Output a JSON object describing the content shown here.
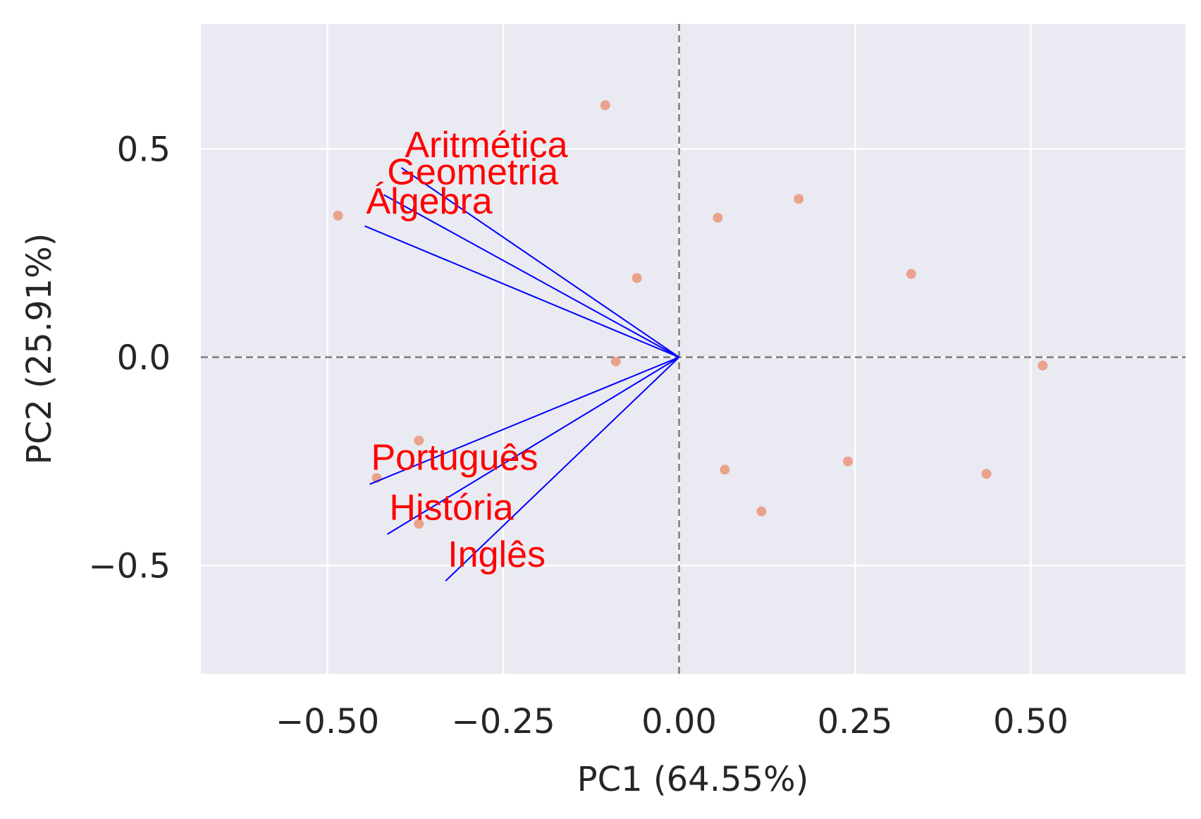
{
  "chart_data": {
    "type": "scatter",
    "title": "",
    "xlabel": "PC1 (64.55%)",
    "ylabel": "PC2 (25.91%)",
    "xlim": [
      -0.68,
      0.72
    ],
    "ylim": [
      -0.76,
      0.8
    ],
    "xticks": [
      -0.5,
      -0.25,
      0.0,
      0.25,
      0.5
    ],
    "xtick_labels": [
      "−0.50",
      "−0.25",
      "0.00",
      "0.25",
      "0.50"
    ],
    "yticks": [
      -0.5,
      0.0,
      0.5
    ],
    "ytick_labels": [
      "−0.5",
      "0.0",
      "0.5"
    ],
    "grid": true,
    "reference_lines": {
      "x": 0,
      "y": 0,
      "style": "dashed",
      "color": "#808080"
    },
    "colors": {
      "background": "#eaeaf2",
      "grid": "#ffffff",
      "points": "#e9967a",
      "arrows": "#0000ff",
      "labels": "#ff0000"
    },
    "points": [
      {
        "x": -0.485,
        "y": 0.34
      },
      {
        "x": -0.105,
        "y": 0.605
      },
      {
        "x": 0.055,
        "y": 0.335
      },
      {
        "x": 0.17,
        "y": 0.38
      },
      {
        "x": -0.06,
        "y": 0.19
      },
      {
        "x": 0.33,
        "y": 0.2
      },
      {
        "x": -0.09,
        "y": -0.01
      },
      {
        "x": 0.517,
        "y": -0.02
      },
      {
        "x": -0.37,
        "y": -0.2
      },
      {
        "x": -0.43,
        "y": -0.29
      },
      {
        "x": -0.37,
        "y": -0.4
      },
      {
        "x": 0.065,
        "y": -0.27
      },
      {
        "x": 0.24,
        "y": -0.25
      },
      {
        "x": 0.437,
        "y": -0.28
      },
      {
        "x": 0.117,
        "y": -0.37
      }
    ],
    "loadings": [
      {
        "name": "Aritmética",
        "x": -0.395,
        "y": 0.455,
        "label_x": -0.39,
        "label_y": 0.48
      },
      {
        "name": "Geometria",
        "x": -0.42,
        "y": 0.39,
        "label_x": -0.415,
        "label_y": 0.415
      },
      {
        "name": "Álgebra",
        "x": -0.447,
        "y": 0.315,
        "label_x": -0.445,
        "label_y": 0.345
      },
      {
        "name": "Português",
        "x": -0.44,
        "y": -0.305,
        "label_x": -0.438,
        "label_y": -0.27
      },
      {
        "name": "História",
        "x": -0.415,
        "y": -0.425,
        "label_x": -0.412,
        "label_y": -0.39
      },
      {
        "name": "Inglês",
        "x": -0.332,
        "y": -0.537,
        "label_x": -0.329,
        "label_y": -0.503
      }
    ]
  }
}
